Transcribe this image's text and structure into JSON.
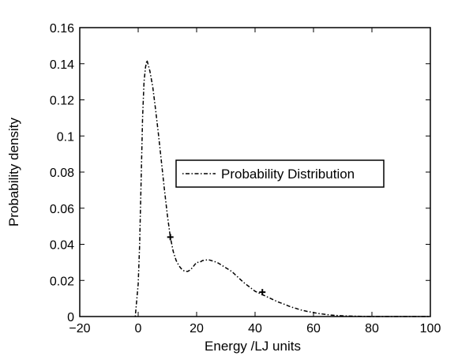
{
  "chart_data": {
    "type": "line",
    "title": "",
    "xlabel": "Energy /LJ units",
    "ylabel": "Probability density",
    "xlim": [
      -20,
      100
    ],
    "ylim": [
      0,
      0.16
    ],
    "xticks": [
      -20,
      0,
      20,
      40,
      60,
      80,
      100
    ],
    "xtick_labels": [
      "−20",
      "0",
      "20",
      "40",
      "60",
      "80",
      "100"
    ],
    "yticks": [
      0,
      0.02,
      0.04,
      0.06,
      0.08,
      0.1,
      0.12,
      0.14,
      0.16
    ],
    "ytick_labels": [
      "0",
      "0.02",
      "0.04",
      "0.06",
      "0.08",
      "0.1",
      "0.12",
      "0.14",
      "0.16"
    ],
    "grid": false,
    "legend": {
      "position": "center-right",
      "entries": [
        "Probability Distribution"
      ]
    },
    "series": [
      {
        "name": "Probability Distribution",
        "line_style": "dash-dot",
        "color": "#000000",
        "x": [
          -1,
          0,
          0.5,
          1,
          1.5,
          2,
          2.5,
          3,
          4,
          5,
          6,
          7,
          8,
          9,
          10,
          11,
          12,
          13,
          14,
          15,
          16,
          17,
          18,
          19,
          20,
          21,
          22,
          23,
          24,
          25,
          26,
          27,
          28,
          29,
          30,
          32,
          34,
          36,
          38,
          40,
          42,
          44,
          46,
          48,
          50,
          52,
          54,
          56,
          58,
          60,
          62,
          64,
          66,
          68,
          70,
          72,
          74,
          76,
          78,
          80,
          85,
          90,
          95,
          100
        ],
        "y": [
          0,
          0.018,
          0.04,
          0.075,
          0.11,
          0.13,
          0.138,
          0.142,
          0.136,
          0.127,
          0.114,
          0.1,
          0.085,
          0.07,
          0.056,
          0.044,
          0.036,
          0.031,
          0.028,
          0.026,
          0.025,
          0.025,
          0.026,
          0.028,
          0.03,
          0.03,
          0.031,
          0.0312,
          0.0315,
          0.031,
          0.0305,
          0.03,
          0.029,
          0.028,
          0.027,
          0.025,
          0.022,
          0.019,
          0.0165,
          0.014,
          0.0125,
          0.011,
          0.0095,
          0.008,
          0.0068,
          0.0055,
          0.0045,
          0.0035,
          0.0028,
          0.0022,
          0.0016,
          0.0012,
          0.0008,
          0.0006,
          0.0004,
          0.0003,
          0.0002,
          0.0001,
          5e-05,
          2e-05,
          1e-05,
          0,
          0,
          0
        ]
      }
    ],
    "markers": [
      {
        "symbol": "+",
        "x": 11,
        "y": 0.044
      },
      {
        "symbol": "+",
        "x": 42.5,
        "y": 0.0135
      }
    ]
  }
}
